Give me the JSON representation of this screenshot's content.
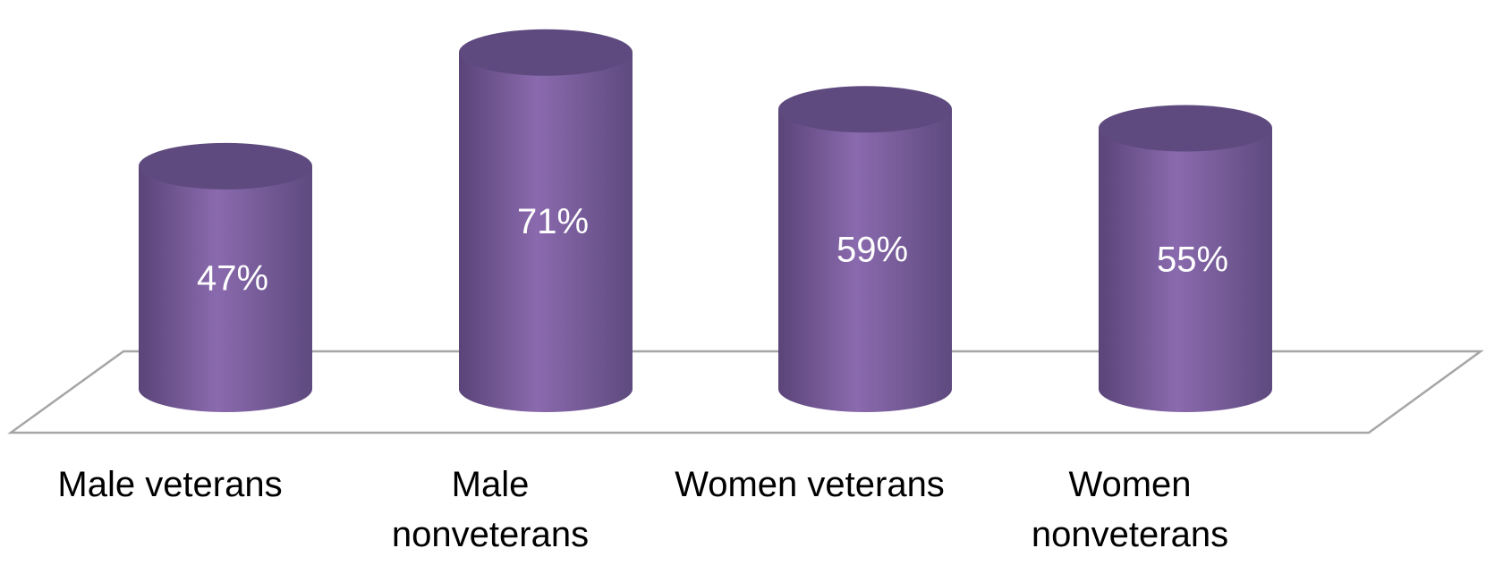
{
  "chart_data": {
    "type": "bar",
    "style": "3d-cylinder",
    "categories": [
      [
        "Male veterans"
      ],
      [
        "Male",
        "nonveterans"
      ],
      [
        "Women veterans"
      ],
      [
        "Women",
        "nonveterans"
      ]
    ],
    "values": [
      47,
      71,
      59,
      55
    ],
    "value_labels": [
      "47%",
      "71%",
      "59%",
      "55%"
    ],
    "title": "",
    "xlabel": "",
    "ylabel": "",
    "ylim": [
      0,
      80
    ],
    "grid": false,
    "legend": "none",
    "colors": {
      "bar_light": "#8a6aae",
      "bar_dark": "#5a4478",
      "bar_top": "#5e4a7e",
      "floor_line": "#a6a6a6"
    }
  }
}
